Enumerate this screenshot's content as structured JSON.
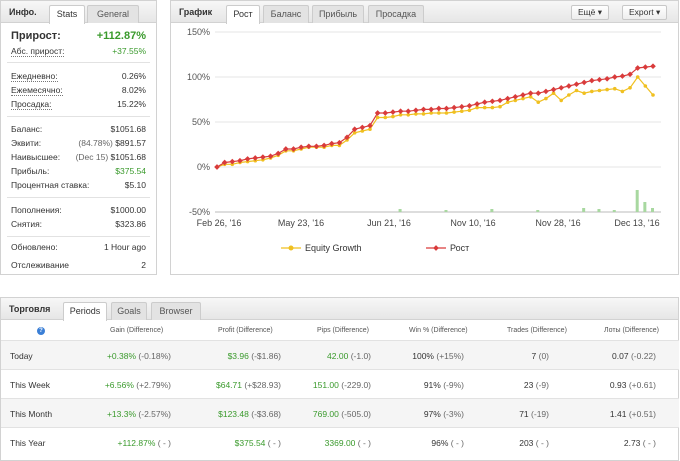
{
  "info": {
    "title": "Инфо.",
    "tabs": [
      "Stats",
      "General"
    ],
    "growth_label": "Прирост:",
    "growth_value": "+112.87%",
    "abs_label": "Абс. прирост:",
    "abs_value": "+37.55%",
    "daily_label": "Ежедневно:",
    "daily_value": "0.26%",
    "monthly_label": "Ежемесячно:",
    "monthly_value": "8.02%",
    "drawdown_label": "Просадка:",
    "drawdown_value": "15.22%",
    "balance_label": "Баланс:",
    "balance_value": "$1051.68",
    "equity_label": "Эквити:",
    "equity_pct": "(84.78%)",
    "equity_value": "$891.57",
    "highest_label": "Наивысшее:",
    "highest_date": "(Dec 15)",
    "highest_value": "$1051.68",
    "profit_label": "Прибыль:",
    "profit_value": "$375.54",
    "interest_label": "Процентная ставка:",
    "interest_value": "$5.10",
    "deposits_label": "Пополнения:",
    "deposits_value": "$1000.00",
    "withdrawals_label": "Снятия:",
    "withdrawals_value": "$323.86",
    "updated_label": "Обновлено:",
    "updated_value": "1 Hour ago",
    "tracking_label": "Отслеживание",
    "tracking_value": "2"
  },
  "graph": {
    "title": "График",
    "tabs": [
      "Рост",
      "Баланс",
      "Прибыль",
      "Просадка"
    ],
    "more_label": "Ещё",
    "export_label": "Export",
    "caret": "▾"
  },
  "chart_data": {
    "type": "line",
    "ylim": [
      -50,
      150
    ],
    "yticks": [
      "150%",
      "100%",
      "50%",
      "0%",
      "-50%"
    ],
    "xticks": [
      "Feb 26, '16",
      "May 23, '16",
      "Jun 21, '16",
      "Nov 10, '16",
      "Nov 28, '16",
      "Dec 13, '16"
    ],
    "series": [
      {
        "name": "Equity Growth",
        "color": "#f0c020",
        "values": [
          0,
          3,
          3,
          5,
          6,
          7,
          8,
          10,
          13,
          18,
          18,
          20,
          22,
          22,
          22,
          24,
          24,
          30,
          38,
          40,
          42,
          55,
          55,
          56,
          58,
          58,
          59,
          59,
          60,
          60,
          60,
          61,
          62,
          63,
          66,
          66,
          66,
          67,
          72,
          74,
          76,
          78,
          72,
          76,
          82,
          74,
          80,
          85,
          82,
          84,
          85,
          86,
          87,
          84,
          88,
          100,
          90,
          80
        ]
      },
      {
        "name": "Рост",
        "color": "#d93b3b",
        "values": [
          0,
          5,
          6,
          7,
          9,
          10,
          11,
          12,
          15,
          20,
          20,
          22,
          23,
          23,
          24,
          26,
          27,
          33,
          42,
          44,
          46,
          60,
          60,
          61,
          62,
          62,
          63,
          64,
          64,
          65,
          65,
          66,
          67,
          68,
          70,
          72,
          73,
          74,
          76,
          78,
          80,
          82,
          82,
          84,
          86,
          88,
          90,
          92,
          94,
          96,
          97,
          98,
          100,
          101,
          103,
          110,
          111,
          112
        ]
      }
    ],
    "volume": [
      0,
      0,
      0,
      0,
      0,
      0,
      0,
      0,
      0,
      0,
      0,
      0,
      0,
      0,
      0,
      0,
      0,
      0,
      0,
      0,
      0,
      0,
      0,
      0,
      0,
      0,
      0,
      0,
      0,
      0,
      0,
      0,
      0,
      0,
      0,
      0,
      0,
      0,
      0,
      0,
      0,
      0,
      0,
      0,
      0,
      0,
      0,
      0,
      0,
      0,
      0,
      0,
      0,
      0,
      0,
      0,
      0,
      0
    ]
  },
  "trading": {
    "title": "Торговля",
    "tabs": [
      "Periods",
      "Goals",
      "Browser"
    ],
    "help_icon": "?",
    "headers": [
      "Gain (Difference)",
      "Profit (Difference)",
      "Pips (Difference)",
      "Win % (Difference)",
      "Trades (Difference)",
      "Лоты (Difference)"
    ],
    "rows": [
      {
        "period": "Today",
        "gain": "+0.38%",
        "gain_diff": "(-0.18%)",
        "profit": "$3.96",
        "profit_diff": "(-$1.86)",
        "pips": "42.00",
        "pips_diff": "(-1.0)",
        "win": "100%",
        "win_diff": "(+15%)",
        "trades": "7",
        "trades_diff": "(0)",
        "lots": "0.07",
        "lots_diff": "(-0.22)"
      },
      {
        "period": "This Week",
        "gain": "+6.56%",
        "gain_diff": "(+2.79%)",
        "profit": "$64.71",
        "profit_diff": "(+$28.93)",
        "pips": "151.00",
        "pips_diff": "(-229.0)",
        "win": "91%",
        "win_diff": "(-9%)",
        "trades": "23",
        "trades_diff": "(-9)",
        "lots": "0.93",
        "lots_diff": "(+0.61)"
      },
      {
        "period": "This Month",
        "gain": "+13.3%",
        "gain_diff": "(-2.57%)",
        "profit": "$123.48",
        "profit_diff": "(-$3.68)",
        "pips": "769.00",
        "pips_diff": "(-505.0)",
        "win": "97%",
        "win_diff": "(-3%)",
        "trades": "71",
        "trades_diff": "(-19)",
        "lots": "1.41",
        "lots_diff": "(+0.51)"
      },
      {
        "period": "This Year",
        "gain": "+112.87%",
        "gain_diff": "( - )",
        "profit": "$375.54",
        "profit_diff": "( - )",
        "pips": "3369.00",
        "pips_diff": "( - )",
        "win": "96%",
        "win_diff": "( - )",
        "trades": "203",
        "trades_diff": "( - )",
        "lots": "2.73",
        "lots_diff": "( - )"
      }
    ]
  }
}
